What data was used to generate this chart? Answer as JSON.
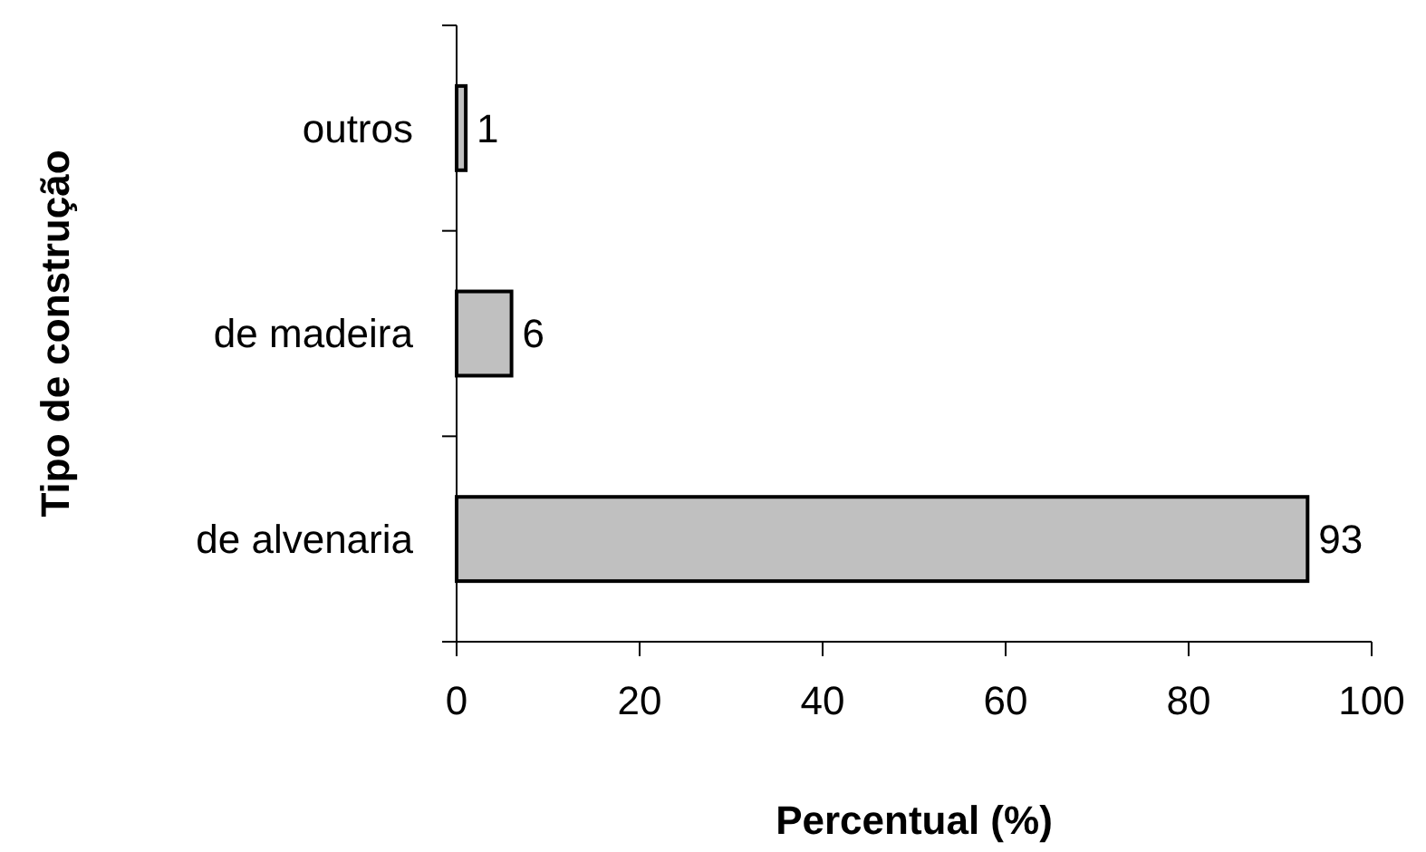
{
  "chart_data": {
    "type": "bar",
    "orientation": "horizontal",
    "xlabel": "Percentual (%)",
    "ylabel": "Tipo de construção",
    "categories": [
      "outros",
      "de madeira",
      "de alvenaria"
    ],
    "values": [
      1,
      6,
      93
    ],
    "color": "#c0c0c0",
    "xlim": [
      0,
      100
    ],
    "xticks": [
      0,
      20,
      40,
      60,
      80,
      100
    ],
    "data_labels": true
  }
}
